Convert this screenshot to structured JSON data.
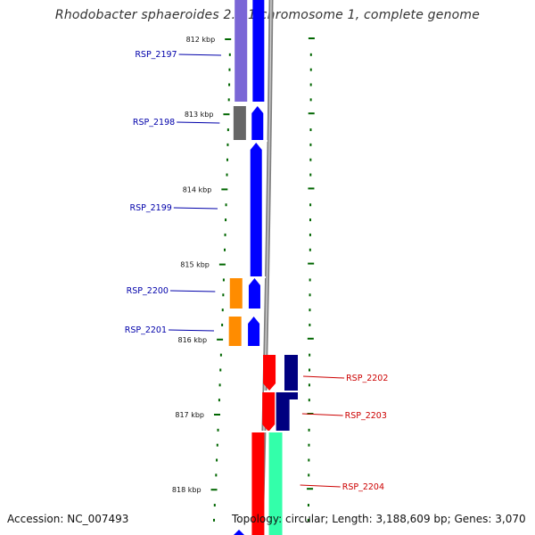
{
  "title": "Rhodobacter sphaeroides 2.4.1 chromosome 1, complete genome",
  "accession_label": "Accession: NC_007493",
  "topology_label": "Topology: circular; Length: 3,188,609 bp; Genes: 3,070",
  "kbp_ticks": [
    {
      "label": "812 kbp",
      "kbp": 812
    },
    {
      "label": "813 kbp",
      "kbp": 813
    },
    {
      "label": "814 kbp",
      "kbp": 814
    },
    {
      "label": "815 kbp",
      "kbp": 815
    },
    {
      "label": "816 kbp",
      "kbp": 816
    },
    {
      "label": "817 kbp",
      "kbp": 817
    },
    {
      "label": "818 kbp",
      "kbp": 818
    }
  ],
  "genes": [
    {
      "name": "RSP_2197",
      "strand": "+",
      "side": "left",
      "color": "#0000cc",
      "inner_color": "#7a66d6"
    },
    {
      "name": "RSP_2198",
      "strand": "+",
      "side": "left",
      "color": "#0000cc",
      "inner_color": "#666666"
    },
    {
      "name": "RSP_2199",
      "strand": "+",
      "side": "left",
      "color": "#0000cc",
      "inner_color": "#0000ee"
    },
    {
      "name": "RSP_2200",
      "strand": "+",
      "side": "left",
      "color": "#0000cc",
      "inner_color": "#ff8c00"
    },
    {
      "name": "RSP_2201",
      "strand": "+",
      "side": "left",
      "color": "#0000cc",
      "inner_color": "#ff8c00"
    },
    {
      "name": "RSP_2202",
      "strand": "-",
      "side": "right",
      "color": "#cc0000",
      "inner_color": "#ff0000"
    },
    {
      "name": "RSP_2203",
      "strand": "-",
      "side": "right",
      "color": "#cc0000",
      "inner_color": "#000080"
    },
    {
      "name": "RSP_2204",
      "strand": "-",
      "side": "right",
      "color": "#cc0000",
      "inner_color": "#33ffaa"
    }
  ],
  "colors": {
    "backbone": "#808080",
    "tick": "#006600",
    "forward_strand": "#0000ff",
    "reverse_strand": "#ff0000",
    "forward_label": "#0000aa",
    "reverse_label": "#cc0000"
  }
}
